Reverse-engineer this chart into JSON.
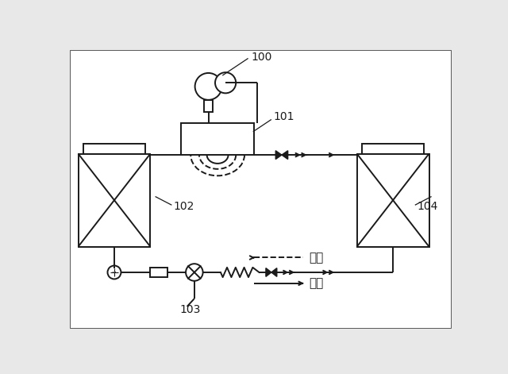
{
  "bg_color": "#e8e8e8",
  "line_color": "#1a1a1a",
  "label_100": "100",
  "label_101": "101",
  "label_102": "102",
  "label_103": "103",
  "label_104": "104",
  "text_danbo": "暖房",
  "text_reiho": "冷房",
  "font_size_label": 10,
  "font_size_kanji": 11
}
